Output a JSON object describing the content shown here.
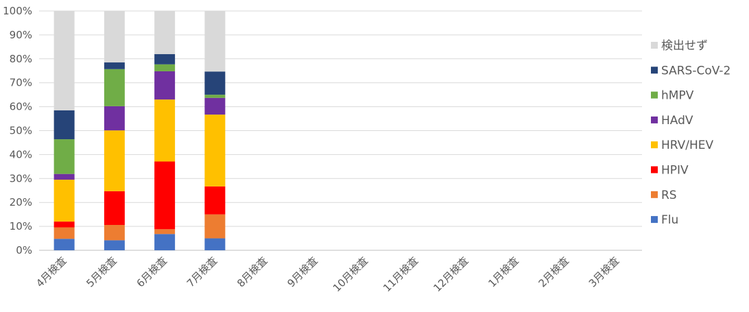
{
  "chart_data": {
    "type": "bar",
    "stacked": true,
    "title": "",
    "xlabel": "",
    "ylabel": "",
    "ylim": [
      0,
      100
    ],
    "y_tick_labels": [
      "0%",
      "10%",
      "20%",
      "30%",
      "40%",
      "50%",
      "60%",
      "70%",
      "80%",
      "90%",
      "100%"
    ],
    "grid": true,
    "legend_position": "right",
    "categories": [
      "4月検査",
      "5月検査",
      "6月検査",
      "7月検査",
      "8月検査",
      "9月検査",
      "10月検査",
      "11月検査",
      "12月検査",
      "1月検査",
      "2月検査",
      "3月検査"
    ],
    "series": [
      {
        "name": "Flu",
        "color": "#4472C4",
        "values": [
          4.8,
          4.2,
          6.8,
          5.0,
          null,
          null,
          null,
          null,
          null,
          null,
          null,
          null
        ]
      },
      {
        "name": "RS",
        "color": "#ED7D31",
        "values": [
          4.8,
          6.4,
          2.0,
          10.0,
          null,
          null,
          null,
          null,
          null,
          null,
          null,
          null
        ]
      },
      {
        "name": "HPIV",
        "color": "#FF0000",
        "values": [
          2.4,
          14.1,
          28.3,
          11.7,
          null,
          null,
          null,
          null,
          null,
          null,
          null,
          null
        ]
      },
      {
        "name": "HRV/HEV",
        "color": "#FFC000",
        "values": [
          17.5,
          25.4,
          25.9,
          30.0,
          null,
          null,
          null,
          null,
          null,
          null,
          null,
          null
        ]
      },
      {
        "name": "HAdV",
        "color": "#7030A0",
        "values": [
          2.4,
          10.1,
          11.8,
          7.0,
          null,
          null,
          null,
          null,
          null,
          null,
          null,
          null
        ]
      },
      {
        "name": "hMPV",
        "color": "#70AD47",
        "values": [
          14.5,
          15.5,
          2.9,
          1.3,
          null,
          null,
          null,
          null,
          null,
          null,
          null,
          null
        ]
      },
      {
        "name": "SARS-CoV-2",
        "color": "#264478",
        "values": [
          12.1,
          2.8,
          4.3,
          9.7,
          null,
          null,
          null,
          null,
          null,
          null,
          null,
          null
        ]
      },
      {
        "name": "検出せず",
        "color": "#D9D9D9",
        "values": [
          41.5,
          21.5,
          18.0,
          25.3,
          null,
          null,
          null,
          null,
          null,
          null,
          null,
          null
        ]
      }
    ]
  }
}
